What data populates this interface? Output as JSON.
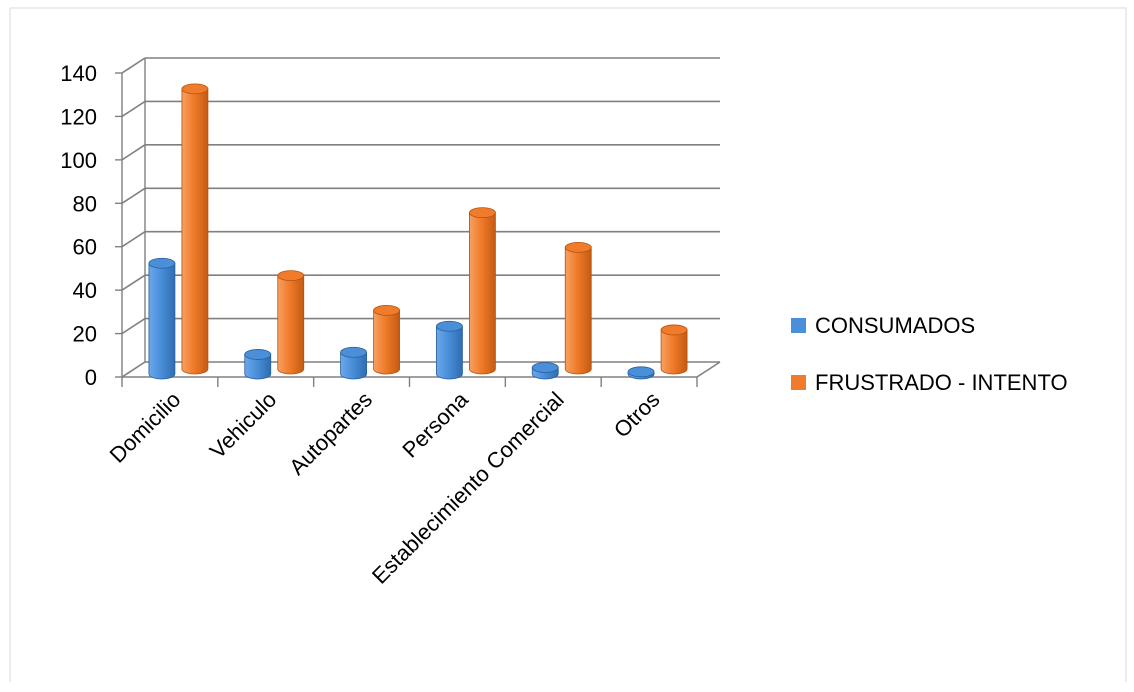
{
  "chart_data": {
    "type": "bar",
    "title": "",
    "xlabel": "",
    "ylabel": "",
    "ylim": [
      0,
      140
    ],
    "yticks": [
      "0",
      "20",
      "40",
      "60",
      "80",
      "100",
      "120",
      "140"
    ],
    "grid": true,
    "legend_position": "right",
    "categories": [
      "Domicilio",
      "Vehiculo",
      "Autopartes",
      "Persona",
      "Establecimiento Comercial",
      "Otros"
    ],
    "series": [
      {
        "name": "CONSUMADOS",
        "color": "#4a8fd8",
        "values": [
          51,
          9,
          10,
          22,
          3,
          1
        ]
      },
      {
        "name": "FRUSTRADO - INTENTO",
        "color": "#f07b2a",
        "values": [
          129,
          43,
          27,
          72,
          56,
          18
        ]
      }
    ]
  }
}
